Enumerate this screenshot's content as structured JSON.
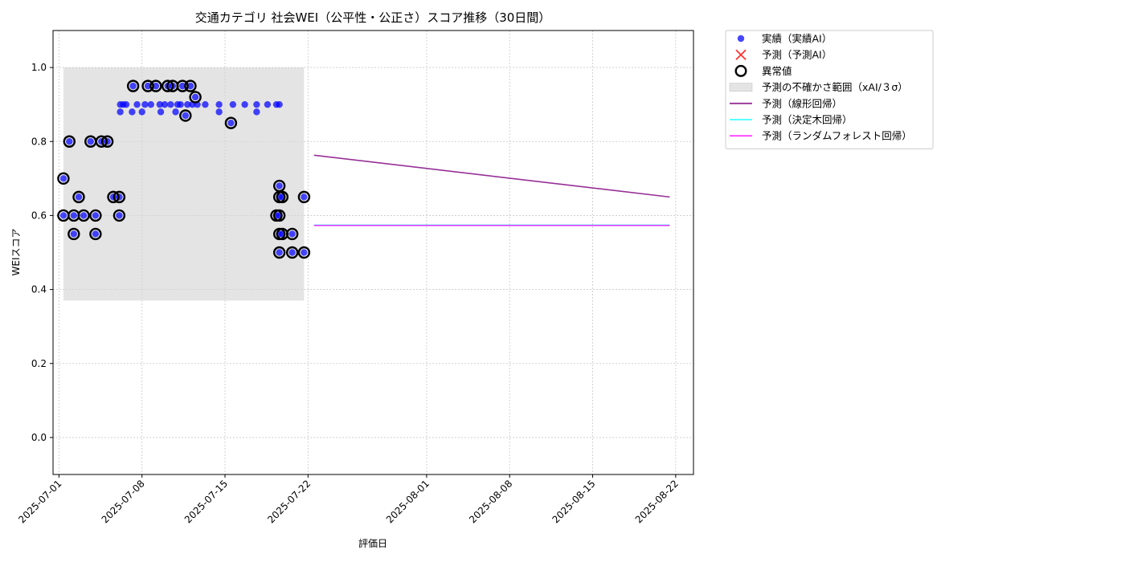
{
  "chart_data": {
    "type": "scatter",
    "title": "交通カテゴリ 社会WEI（公平性・公正さ）スコア推移（30日間）",
    "xlabel": "評価日",
    "ylabel": "WEIスコア",
    "xlim": [
      "2025-06-30T12:00",
      "2025-08-23T12:00"
    ],
    "ylim": [
      -0.1,
      1.1
    ],
    "x_ticks": [
      "2025-07-01",
      "2025-07-08",
      "2025-07-15",
      "2025-07-22",
      "2025-08-01",
      "2025-08-08",
      "2025-08-15",
      "2025-08-22"
    ],
    "y_ticks": [
      0.0,
      0.2,
      0.4,
      0.6,
      0.8,
      1.0
    ],
    "y_tick_labels": [
      "0.0",
      "0.2",
      "0.4",
      "0.6",
      "0.8",
      "1.0"
    ],
    "grid": true,
    "legend_position": "outside-top-right",
    "colors": {
      "actual": "#0000ff",
      "forecast_marker": "#ff0000",
      "anomaly": "#000000",
      "band": "#d3d3d3",
      "linear": "#8b1a8b",
      "tree": "#00ffff",
      "forest": "#ff00ff"
    },
    "legend": [
      {
        "key": "actual",
        "label": "実績（実績AI）",
        "symbol": "dot"
      },
      {
        "key": "forecast_marker",
        "label": "予測（予測AI）",
        "symbol": "cross"
      },
      {
        "key": "anomaly",
        "label": "異常値",
        "symbol": "ring"
      },
      {
        "key": "band",
        "label": "予測の不確かさ範囲（xAI/３σ）",
        "symbol": "patch"
      },
      {
        "key": "linear",
        "label": "予測（線形回帰）",
        "symbol": "line"
      },
      {
        "key": "tree",
        "label": "予測（決定木回帰）",
        "symbol": "line"
      },
      {
        "key": "forest",
        "label": "予測（ランダムフォレスト回帰）",
        "symbol": "line"
      }
    ],
    "uncertainty_band": {
      "x_start": "2025-07-01T09:00",
      "x_end": "2025-07-21T16:00",
      "y_low": 0.37,
      "y_high": 1.0
    },
    "actual_points": [
      {
        "x": "2025-07-01T09:00",
        "y": 0.6
      },
      {
        "x": "2025-07-01T09:00",
        "y": 0.7
      },
      {
        "x": "2025-07-01T21:00",
        "y": 0.8
      },
      {
        "x": "2025-07-02T06:00",
        "y": 0.6
      },
      {
        "x": "2025-07-02T06:00",
        "y": 0.55
      },
      {
        "x": "2025-07-02T16:00",
        "y": 0.65
      },
      {
        "x": "2025-07-03T02:00",
        "y": 0.6
      },
      {
        "x": "2025-07-03T16:00",
        "y": 0.8
      },
      {
        "x": "2025-07-04T02:00",
        "y": 0.6
      },
      {
        "x": "2025-07-04T02:00",
        "y": 0.55
      },
      {
        "x": "2025-07-04T14:00",
        "y": 0.8
      },
      {
        "x": "2025-07-05T02:00",
        "y": 0.8
      },
      {
        "x": "2025-07-05T14:00",
        "y": 0.65
      },
      {
        "x": "2025-07-06T02:00",
        "y": 0.65
      },
      {
        "x": "2025-07-06T02:00",
        "y": 0.6
      },
      {
        "x": "2025-07-06T04:00",
        "y": 0.9
      },
      {
        "x": "2025-07-06T04:00",
        "y": 0.88
      },
      {
        "x": "2025-07-06T10:00",
        "y": 0.9
      },
      {
        "x": "2025-07-06T16:00",
        "y": 0.9
      },
      {
        "x": "2025-07-07T04:00",
        "y": 0.88
      },
      {
        "x": "2025-07-07T06:00",
        "y": 0.95
      },
      {
        "x": "2025-07-07T14:00",
        "y": 0.9
      },
      {
        "x": "2025-07-08T00:00",
        "y": 0.88
      },
      {
        "x": "2025-07-08T06:00",
        "y": 0.9
      },
      {
        "x": "2025-07-08T12:00",
        "y": 0.95
      },
      {
        "x": "2025-07-08T18:00",
        "y": 0.9
      },
      {
        "x": "2025-07-09T04:00",
        "y": 0.95
      },
      {
        "x": "2025-07-09T12:00",
        "y": 0.9
      },
      {
        "x": "2025-07-09T14:00",
        "y": 0.88
      },
      {
        "x": "2025-07-09T22:00",
        "y": 0.9
      },
      {
        "x": "2025-07-10T04:00",
        "y": 0.95
      },
      {
        "x": "2025-07-10T10:00",
        "y": 0.9
      },
      {
        "x": "2025-07-10T14:00",
        "y": 0.95
      },
      {
        "x": "2025-07-10T20:00",
        "y": 0.88
      },
      {
        "x": "2025-07-11T00:00",
        "y": 0.9
      },
      {
        "x": "2025-07-11T06:00",
        "y": 0.9
      },
      {
        "x": "2025-07-11T10:00",
        "y": 0.95
      },
      {
        "x": "2025-07-11T16:00",
        "y": 0.87
      },
      {
        "x": "2025-07-11T20:00",
        "y": 0.9
      },
      {
        "x": "2025-07-12T02:00",
        "y": 0.95
      },
      {
        "x": "2025-07-12T06:00",
        "y": 0.9
      },
      {
        "x": "2025-07-12T12:00",
        "y": 0.92
      },
      {
        "x": "2025-07-12T16:00",
        "y": 0.9
      },
      {
        "x": "2025-07-13T08:00",
        "y": 0.9
      },
      {
        "x": "2025-07-14T12:00",
        "y": 0.9
      },
      {
        "x": "2025-07-14T12:00",
        "y": 0.88
      },
      {
        "x": "2025-07-15T12:00",
        "y": 0.85
      },
      {
        "x": "2025-07-15T16:00",
        "y": 0.9
      },
      {
        "x": "2025-07-16T16:00",
        "y": 0.9
      },
      {
        "x": "2025-07-17T16:00",
        "y": 0.9
      },
      {
        "x": "2025-07-17T16:00",
        "y": 0.88
      },
      {
        "x": "2025-07-18T14:00",
        "y": 0.9
      },
      {
        "x": "2025-07-19T08:00",
        "y": 0.9
      },
      {
        "x": "2025-07-19T14:00",
        "y": 0.9
      },
      {
        "x": "2025-07-19T08:00",
        "y": 0.6
      },
      {
        "x": "2025-07-19T14:00",
        "y": 0.68
      },
      {
        "x": "2025-07-19T14:00",
        "y": 0.65
      },
      {
        "x": "2025-07-19T14:00",
        "y": 0.6
      },
      {
        "x": "2025-07-19T14:00",
        "y": 0.55
      },
      {
        "x": "2025-07-19T14:00",
        "y": 0.5
      },
      {
        "x": "2025-07-19T20:00",
        "y": 0.65
      },
      {
        "x": "2025-07-19T20:00",
        "y": 0.55
      },
      {
        "x": "2025-07-20T16:00",
        "y": 0.55
      },
      {
        "x": "2025-07-20T16:00",
        "y": 0.5
      },
      {
        "x": "2025-07-21T16:00",
        "y": 0.65
      },
      {
        "x": "2025-07-21T16:00",
        "y": 0.5
      }
    ],
    "anomaly_points": [
      {
        "x": "2025-07-01T09:00",
        "y": 0.6
      },
      {
        "x": "2025-07-01T09:00",
        "y": 0.7
      },
      {
        "x": "2025-07-01T21:00",
        "y": 0.8
      },
      {
        "x": "2025-07-02T06:00",
        "y": 0.6
      },
      {
        "x": "2025-07-02T06:00",
        "y": 0.55
      },
      {
        "x": "2025-07-02T16:00",
        "y": 0.65
      },
      {
        "x": "2025-07-03T02:00",
        "y": 0.6
      },
      {
        "x": "2025-07-03T16:00",
        "y": 0.8
      },
      {
        "x": "2025-07-04T02:00",
        "y": 0.6
      },
      {
        "x": "2025-07-04T02:00",
        "y": 0.55
      },
      {
        "x": "2025-07-04T14:00",
        "y": 0.8
      },
      {
        "x": "2025-07-05T02:00",
        "y": 0.8
      },
      {
        "x": "2025-07-05T14:00",
        "y": 0.65
      },
      {
        "x": "2025-07-06T02:00",
        "y": 0.65
      },
      {
        "x": "2025-07-06T02:00",
        "y": 0.6
      },
      {
        "x": "2025-07-07T06:00",
        "y": 0.95
      },
      {
        "x": "2025-07-08T12:00",
        "y": 0.95
      },
      {
        "x": "2025-07-09T04:00",
        "y": 0.95
      },
      {
        "x": "2025-07-10T04:00",
        "y": 0.95
      },
      {
        "x": "2025-07-10T14:00",
        "y": 0.95
      },
      {
        "x": "2025-07-11T10:00",
        "y": 0.95
      },
      {
        "x": "2025-07-11T16:00",
        "y": 0.87
      },
      {
        "x": "2025-07-12T02:00",
        "y": 0.95
      },
      {
        "x": "2025-07-12T12:00",
        "y": 0.92
      },
      {
        "x": "2025-07-15T12:00",
        "y": 0.85
      },
      {
        "x": "2025-07-19T08:00",
        "y": 0.6
      },
      {
        "x": "2025-07-19T14:00",
        "y": 0.68
      },
      {
        "x": "2025-07-19T14:00",
        "y": 0.65
      },
      {
        "x": "2025-07-19T14:00",
        "y": 0.6
      },
      {
        "x": "2025-07-19T14:00",
        "y": 0.55
      },
      {
        "x": "2025-07-19T14:00",
        "y": 0.5
      },
      {
        "x": "2025-07-19T20:00",
        "y": 0.65
      },
      {
        "x": "2025-07-19T20:00",
        "y": 0.55
      },
      {
        "x": "2025-07-20T16:00",
        "y": 0.55
      },
      {
        "x": "2025-07-20T16:00",
        "y": 0.5
      },
      {
        "x": "2025-07-21T16:00",
        "y": 0.65
      },
      {
        "x": "2025-07-21T16:00",
        "y": 0.5
      }
    ],
    "forecast_lines": [
      {
        "key": "linear",
        "name": "予測（線形回帰）",
        "x": [
          "2025-07-22T12:00",
          "2025-08-21T12:00"
        ],
        "y": [
          0.763,
          0.65
        ]
      },
      {
        "key": "tree",
        "name": "予測（決定木回帰）",
        "x": [
          "2025-07-22T12:00",
          "2025-08-21T12:00"
        ],
        "y": [
          0.574,
          0.574
        ]
      },
      {
        "key": "forest",
        "name": "予測（ランダムフォレスト回帰）",
        "x": [
          "2025-07-22T12:00",
          "2025-08-21T12:00"
        ],
        "y": [
          0.573,
          0.573
        ]
      }
    ]
  }
}
